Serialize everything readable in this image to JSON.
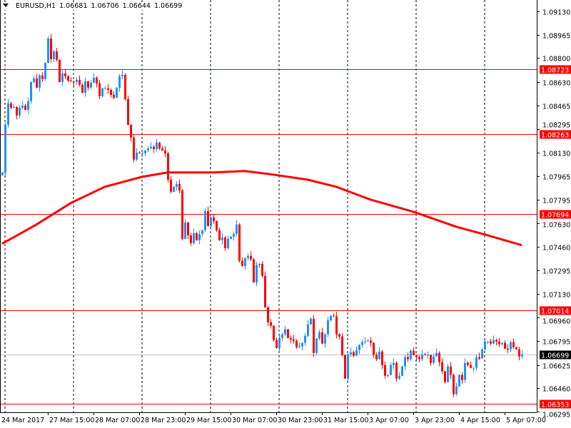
{
  "header": {
    "symbol": "EURUSD,H1",
    "open": "1.06681",
    "high": "1.06706",
    "low": "1.06644",
    "close": "1.06699"
  },
  "chart_data": {
    "type": "candlestick",
    "symbol": "EURUSD",
    "timeframe": "H1",
    "ylim": [
      1.06295,
      1.0913
    ],
    "y_ticks": [
      "1.09130",
      "1.08965",
      "1.08800",
      "1.08630",
      "1.08465",
      "1.08295",
      "1.08130",
      "1.07965",
      "1.07795",
      "1.07630",
      "1.07460",
      "1.07295",
      "1.07130",
      "1.06960",
      "1.06795",
      "1.06625",
      "1.06460",
      "1.06295"
    ],
    "x_ticks": [
      "24 Mar 2017",
      "27 Mar 15:00",
      "28 Mar 07:00",
      "28 Mar 23:00",
      "29 Mar 15:00",
      "30 Mar 07:00",
      "30 Mar 23:00",
      "31 Mar 15:00",
      "3 Apr 07:00",
      "3 Apr 23:00",
      "4 Apr 15:00",
      "5 Apr 07:00"
    ],
    "up_color": "#1e90ff",
    "down_color": "#ff0000",
    "closes": [
      1.07989,
      1.08327,
      1.08479,
      1.08448,
      1.08453,
      1.08393,
      1.08448,
      1.08463,
      1.08433,
      1.08494,
      1.0863,
      1.08655,
      1.0859,
      1.08676,
      1.0865,
      1.08766,
      1.08938,
      1.08792,
      1.08847,
      1.08787,
      1.0863,
      1.08691,
      1.0867,
      1.0864,
      1.08635,
      1.0863,
      1.08645,
      1.0861,
      1.08554,
      1.08635,
      1.0859,
      1.08625,
      1.0866,
      1.0862,
      1.08529,
      1.08585,
      1.08585,
      1.08574,
      1.08539,
      1.08519,
      1.0859,
      1.0867,
      1.08681,
      1.08509,
      1.08327,
      1.08236,
      1.0808,
      1.0813,
      1.08125,
      1.08125,
      1.08145,
      1.0816,
      1.08171,
      1.08155,
      1.08201,
      1.0816,
      1.08145,
      1.08125,
      1.07938,
      1.07852,
      1.07888,
      1.07908,
      1.07862,
      1.07519,
      1.07635,
      1.07544,
      1.07489,
      1.07559,
      1.07509,
      1.07554,
      1.0758,
      1.07716,
      1.0761,
      1.07671,
      1.07645,
      1.0758,
      1.07509,
      1.07529,
      1.07453,
      1.07519,
      1.07534,
      1.07554,
      1.0762,
      1.07363,
      1.07327,
      1.07383,
      1.07398,
      1.07373,
      1.07211,
      1.07332,
      1.07342,
      1.07256,
      1.07034,
      1.06928,
      1.06903,
      1.06802,
      1.06746,
      1.06817,
      1.06842,
      1.06878,
      1.06817,
      1.06807,
      1.06797,
      1.06751,
      1.06757,
      1.06782,
      1.06832,
      1.06913,
      1.06953,
      1.06711,
      1.06812,
      1.06857,
      1.06777,
      1.06842,
      1.06943,
      1.06974,
      1.06969,
      1.06842,
      1.06827,
      1.06696,
      1.06529,
      1.06701,
      1.06716,
      1.06691,
      1.06731,
      1.06767,
      1.06787,
      1.06792,
      1.06797,
      1.06782,
      1.06696,
      1.06666,
      1.06721,
      1.06625,
      1.06549,
      1.06555,
      1.06625,
      1.0664,
      1.06529,
      1.06549,
      1.06615,
      1.06681,
      1.06666,
      1.06726,
      1.06696,
      1.06681,
      1.06666,
      1.06701,
      1.06696,
      1.06696,
      1.0664,
      1.06686,
      1.06711,
      1.06645,
      1.0658,
      1.06504,
      1.06615,
      1.06555,
      1.06418,
      1.06474,
      1.06555,
      1.06519,
      1.0664,
      1.06625,
      1.06605,
      1.06605,
      1.06681,
      1.06671,
      1.06736,
      1.06792,
      1.06792,
      1.06777,
      1.06802,
      1.06792,
      1.06772,
      1.06782,
      1.06741,
      1.06736,
      1.06787,
      1.06751,
      1.06736,
      1.06686,
      1.06699
    ],
    "moving_average": {
      "color": "#ff0000",
      "points": [
        [
          0,
          1.07484
        ],
        [
          12,
          1.0762
        ],
        [
          24,
          1.07772
        ],
        [
          36,
          1.07888
        ],
        [
          49,
          1.07958
        ],
        [
          58,
          1.07989
        ],
        [
          74,
          1.07989
        ],
        [
          85,
          1.07999
        ],
        [
          95,
          1.07974
        ],
        [
          107,
          1.07938
        ],
        [
          117,
          1.07888
        ],
        [
          129,
          1.07797
        ],
        [
          144,
          1.07711
        ],
        [
          159,
          1.07605
        ],
        [
          170,
          1.07544
        ],
        [
          182,
          1.07474
        ]
      ]
    },
    "horizontal_lines": [
      {
        "price": "1.08723",
        "color": "#ff0000"
      },
      {
        "price": "1.08263",
        "color": "#ff0000"
      },
      {
        "price": "1.07694",
        "color": "#ff0000"
      },
      {
        "price": "1.07014",
        "color": "#ff0000"
      },
      {
        "price": "1.06353",
        "color": "#ff0000"
      }
    ],
    "current_price": {
      "price": "1.06699",
      "line_color": "#c0c0c0",
      "label_bg": "#000000"
    },
    "period_separators": true
  }
}
